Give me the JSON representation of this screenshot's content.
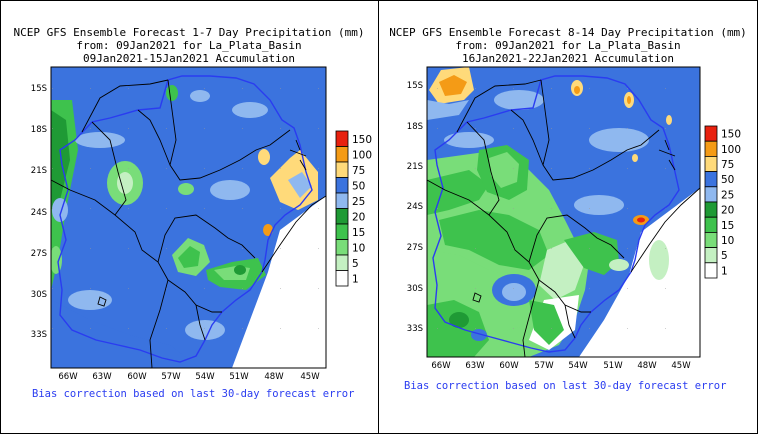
{
  "chart_data": [
    {
      "type": "heatmap",
      "title_lines": [
        "NCEP GFS Ensemble Forecast 1-7 Day Precipitation (mm)",
        "from: 09Jan2021   for La_Plata_Basin",
        "09Jan2021-15Jan2021 Accumulation"
      ],
      "x_ticks": [
        "66W",
        "63W",
        "60W",
        "57W",
        "54W",
        "51W",
        "48W",
        "45W"
      ],
      "y_ticks": [
        "15S",
        "18S",
        "21S",
        "24S",
        "27S",
        "30S",
        "33S"
      ],
      "legend": [
        {
          "label": "150",
          "color": "#e8210f"
        },
        {
          "label": "100",
          "color": "#f49b16"
        },
        {
          "label": "75",
          "color": "#ffda7a"
        },
        {
          "label": "50",
          "color": "#3b73de"
        },
        {
          "label": "25",
          "color": "#8fb8ef"
        },
        {
          "label": "20",
          "color": "#1f9a35"
        },
        {
          "label": "15",
          "color": "#3ec24d"
        },
        {
          "label": "10",
          "color": "#79dd79"
        },
        {
          "label": "5",
          "color": "#c4f0c2"
        },
        {
          "label": "1",
          "color": "#ffffff"
        }
      ],
      "footnote": "Bias correction based on last 30-day forecast error"
    },
    {
      "type": "heatmap",
      "title_lines": [
        "NCEP GFS Ensemble Forecast 8-14 Day Precipitation (mm)",
        "from: 09Jan2021   for La_Plata_Basin",
        "16Jan2021-22Jan2021 Accumulation"
      ],
      "x_ticks": [
        "66W",
        "63W",
        "60W",
        "57W",
        "54W",
        "51W",
        "48W",
        "45W"
      ],
      "y_ticks": [
        "15S",
        "18S",
        "21S",
        "24S",
        "27S",
        "30S",
        "33S"
      ],
      "legend": [
        {
          "label": "150",
          "color": "#e8210f"
        },
        {
          "label": "100",
          "color": "#f49b16"
        },
        {
          "label": "75",
          "color": "#ffda7a"
        },
        {
          "label": "50",
          "color": "#3b73de"
        },
        {
          "label": "25",
          "color": "#8fb8ef"
        },
        {
          "label": "20",
          "color": "#1f9a35"
        },
        {
          "label": "15",
          "color": "#3ec24d"
        },
        {
          "label": "10",
          "color": "#79dd79"
        },
        {
          "label": "5",
          "color": "#c4f0c2"
        },
        {
          "label": "1",
          "color": "#ffffff"
        }
      ],
      "footnote": "Bias correction based on last 30-day forecast error"
    }
  ]
}
